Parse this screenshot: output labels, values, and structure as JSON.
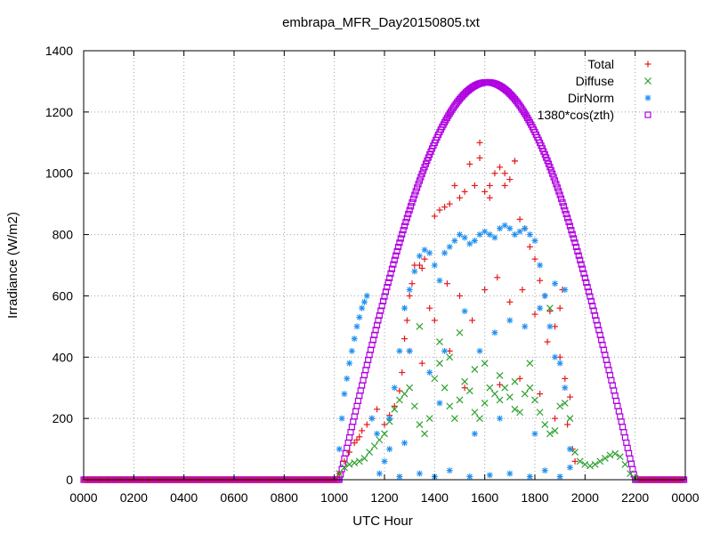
{
  "chart_data": {
    "type": "scatter",
    "title": "embrapa_MFR_Day20150805.txt",
    "xlabel": "UTC Hour",
    "ylabel": "Irradiance (W/m2)",
    "xlim": [
      0,
      24
    ],
    "ylim": [
      0,
      1400
    ],
    "x_ticks": [
      0,
      2,
      4,
      6,
      8,
      10,
      12,
      14,
      16,
      18,
      20,
      22,
      24
    ],
    "x_tick_labels": [
      "0000",
      "0200",
      "0400",
      "0600",
      "0800",
      "1000",
      "1200",
      "1400",
      "1600",
      "1800",
      "2000",
      "2200",
      "0000"
    ],
    "y_ticks": [
      0,
      200,
      400,
      600,
      800,
      1000,
      1200,
      1400
    ],
    "y_tick_labels": [
      "0",
      "200",
      "400",
      "600",
      "800",
      "1000",
      "1200",
      "1400"
    ],
    "grid": true,
    "legend_position": "top-right",
    "colors": {
      "Total": "#e41a1c",
      "Diffuse": "#2ca02c",
      "DirNorm": "#1f8fef",
      "Clear": "#b000e0"
    },
    "series": [
      {
        "name": "Total",
        "marker": "+",
        "points": [
          [
            10.2,
            20
          ],
          [
            10.4,
            60
          ],
          [
            10.6,
            90
          ],
          [
            10.8,
            120
          ],
          [
            10.9,
            130
          ],
          [
            11.0,
            140
          ],
          [
            11.1,
            160
          ],
          [
            11.3,
            180
          ],
          [
            11.5,
            200
          ],
          [
            11.7,
            230
          ],
          [
            12.0,
            180
          ],
          [
            12.2,
            210
          ],
          [
            12.4,
            240
          ],
          [
            12.6,
            290
          ],
          [
            12.7,
            350
          ],
          [
            12.8,
            460
          ],
          [
            12.9,
            520
          ],
          [
            13.0,
            600
          ],
          [
            13.1,
            640
          ],
          [
            13.2,
            700
          ],
          [
            13.4,
            700
          ],
          [
            13.5,
            690
          ],
          [
            13.6,
            720
          ],
          [
            13.8,
            560
          ],
          [
            14.0,
            860
          ],
          [
            14.2,
            880
          ],
          [
            14.4,
            890
          ],
          [
            14.6,
            900
          ],
          [
            14.8,
            960
          ],
          [
            15.0,
            920
          ],
          [
            15.2,
            940
          ],
          [
            15.4,
            1030
          ],
          [
            15.6,
            960
          ],
          [
            15.8,
            1050
          ],
          [
            16.0,
            940
          ],
          [
            16.2,
            920
          ],
          [
            16.4,
            1000
          ],
          [
            16.6,
            1020
          ],
          [
            16.8,
            1000
          ],
          [
            17.0,
            980
          ],
          [
            17.2,
            1040
          ],
          [
            17.4,
            850
          ],
          [
            17.6,
            820
          ],
          [
            17.8,
            760
          ],
          [
            18.0,
            720
          ],
          [
            18.2,
            650
          ],
          [
            18.4,
            600
          ],
          [
            18.6,
            550
          ],
          [
            18.8,
            500
          ],
          [
            19.0,
            400
          ],
          [
            19.2,
            330
          ],
          [
            19.4,
            270
          ],
          [
            13.0,
            420
          ],
          [
            13.5,
            380
          ],
          [
            14.0,
            520
          ],
          [
            14.5,
            640
          ],
          [
            15.0,
            600
          ],
          [
            15.5,
            520
          ],
          [
            16.0,
            620
          ],
          [
            16.5,
            660
          ],
          [
            17.0,
            580
          ],
          [
            17.5,
            620
          ],
          [
            18.0,
            540
          ],
          [
            18.5,
            450
          ],
          [
            19.0,
            560
          ],
          [
            19.1,
            620
          ],
          [
            19.3,
            180
          ],
          [
            19.5,
            100
          ],
          [
            19.6,
            60
          ],
          [
            15.8,
            1100
          ],
          [
            16.2,
            960
          ],
          [
            16.8,
            960
          ],
          [
            17.2,
            1040
          ],
          [
            14.6,
            420
          ],
          [
            15.2,
            300
          ],
          [
            16.6,
            310
          ],
          [
            17.4,
            330
          ],
          [
            18.2,
            280
          ],
          [
            18.8,
            200
          ]
        ]
      },
      {
        "name": "Diffuse",
        "marker": "x",
        "points": [
          [
            10.2,
            20
          ],
          [
            10.4,
            40
          ],
          [
            10.6,
            50
          ],
          [
            10.8,
            55
          ],
          [
            11.0,
            60
          ],
          [
            11.2,
            70
          ],
          [
            11.4,
            90
          ],
          [
            11.6,
            110
          ],
          [
            11.8,
            130
          ],
          [
            12.0,
            150
          ],
          [
            12.2,
            190
          ],
          [
            12.4,
            230
          ],
          [
            12.6,
            260
          ],
          [
            12.8,
            280
          ],
          [
            13.0,
            300
          ],
          [
            13.2,
            240
          ],
          [
            13.4,
            180
          ],
          [
            13.6,
            150
          ],
          [
            13.8,
            200
          ],
          [
            14.0,
            330
          ],
          [
            14.2,
            380
          ],
          [
            14.4,
            300
          ],
          [
            14.6,
            240
          ],
          [
            14.8,
            200
          ],
          [
            15.0,
            260
          ],
          [
            15.2,
            320
          ],
          [
            15.4,
            290
          ],
          [
            15.6,
            220
          ],
          [
            15.8,
            200
          ],
          [
            16.0,
            250
          ],
          [
            16.2,
            300
          ],
          [
            16.4,
            280
          ],
          [
            16.6,
            260
          ],
          [
            16.8,
            300
          ],
          [
            17.0,
            270
          ],
          [
            17.2,
            230
          ],
          [
            17.4,
            220
          ],
          [
            17.6,
            280
          ],
          [
            17.8,
            300
          ],
          [
            18.0,
            260
          ],
          [
            18.2,
            220
          ],
          [
            18.4,
            180
          ],
          [
            18.6,
            150
          ],
          [
            18.8,
            160
          ],
          [
            19.0,
            240
          ],
          [
            19.2,
            250
          ],
          [
            19.4,
            200
          ],
          [
            19.6,
            90
          ],
          [
            19.8,
            60
          ],
          [
            20.0,
            50
          ],
          [
            20.2,
            45
          ],
          [
            20.4,
            50
          ],
          [
            20.6,
            60
          ],
          [
            20.8,
            70
          ],
          [
            21.0,
            80
          ],
          [
            21.2,
            85
          ],
          [
            21.4,
            75
          ],
          [
            21.6,
            50
          ],
          [
            21.8,
            20
          ],
          [
            22.0,
            5
          ],
          [
            14.6,
            400
          ],
          [
            15.0,
            480
          ],
          [
            15.6,
            360
          ],
          [
            16.0,
            380
          ],
          [
            16.6,
            340
          ],
          [
            17.2,
            320
          ],
          [
            17.8,
            380
          ],
          [
            18.6,
            560
          ],
          [
            13.4,
            500
          ],
          [
            14.2,
            450
          ]
        ]
      },
      {
        "name": "DirNorm",
        "marker": "*",
        "points": [
          [
            10.2,
            100
          ],
          [
            10.3,
            200
          ],
          [
            10.4,
            280
          ],
          [
            10.5,
            330
          ],
          [
            10.6,
            380
          ],
          [
            10.7,
            420
          ],
          [
            10.8,
            460
          ],
          [
            10.9,
            500
          ],
          [
            11.0,
            530
          ],
          [
            11.1,
            560
          ],
          [
            11.2,
            580
          ],
          [
            11.3,
            600
          ],
          [
            11.5,
            200
          ],
          [
            11.7,
            150
          ],
          [
            12.0,
            60
          ],
          [
            12.2,
            100
          ],
          [
            12.4,
            300
          ],
          [
            12.6,
            420
          ],
          [
            12.8,
            560
          ],
          [
            13.0,
            620
          ],
          [
            13.2,
            680
          ],
          [
            13.4,
            730
          ],
          [
            13.6,
            750
          ],
          [
            13.8,
            740
          ],
          [
            14.0,
            700
          ],
          [
            14.2,
            650
          ],
          [
            14.4,
            740
          ],
          [
            14.6,
            760
          ],
          [
            14.8,
            780
          ],
          [
            15.0,
            800
          ],
          [
            15.2,
            790
          ],
          [
            15.4,
            770
          ],
          [
            15.6,
            780
          ],
          [
            15.8,
            800
          ],
          [
            16.0,
            810
          ],
          [
            16.2,
            800
          ],
          [
            16.4,
            790
          ],
          [
            16.6,
            820
          ],
          [
            16.8,
            830
          ],
          [
            17.0,
            820
          ],
          [
            17.2,
            800
          ],
          [
            17.4,
            810
          ],
          [
            17.6,
            820
          ],
          [
            17.8,
            800
          ],
          [
            18.0,
            780
          ],
          [
            18.2,
            700
          ],
          [
            18.4,
            600
          ],
          [
            18.6,
            500
          ],
          [
            18.8,
            400
          ],
          [
            19.0,
            380
          ],
          [
            19.2,
            300
          ],
          [
            19.4,
            100
          ],
          [
            11.8,
            20
          ],
          [
            12.6,
            10
          ],
          [
            13.4,
            20
          ],
          [
            14.0,
            10
          ],
          [
            14.6,
            30
          ],
          [
            15.4,
            10
          ],
          [
            16.2,
            15
          ],
          [
            17.0,
            20
          ],
          [
            17.8,
            10
          ],
          [
            18.4,
            30
          ],
          [
            19.0,
            10
          ],
          [
            13.0,
            420
          ],
          [
            13.8,
            350
          ],
          [
            14.4,
            420
          ],
          [
            15.2,
            550
          ],
          [
            15.8,
            420
          ],
          [
            16.4,
            480
          ],
          [
            17.0,
            520
          ],
          [
            17.6,
            500
          ],
          [
            18.2,
            560
          ],
          [
            18.8,
            640
          ],
          [
            19.2,
            620
          ],
          [
            12.2,
            200
          ],
          [
            12.8,
            120
          ],
          [
            14.2,
            250
          ],
          [
            15.6,
            150
          ],
          [
            16.6,
            200
          ],
          [
            18.0,
            150
          ],
          [
            19.4,
            40
          ]
        ]
      },
      {
        "name": "1380*cos(zth)",
        "marker": "square",
        "curve": {
          "peak_hour": 16.1,
          "peak_value": 1297,
          "half_width_hours": 5.9,
          "off_value": 0
        }
      }
    ]
  }
}
